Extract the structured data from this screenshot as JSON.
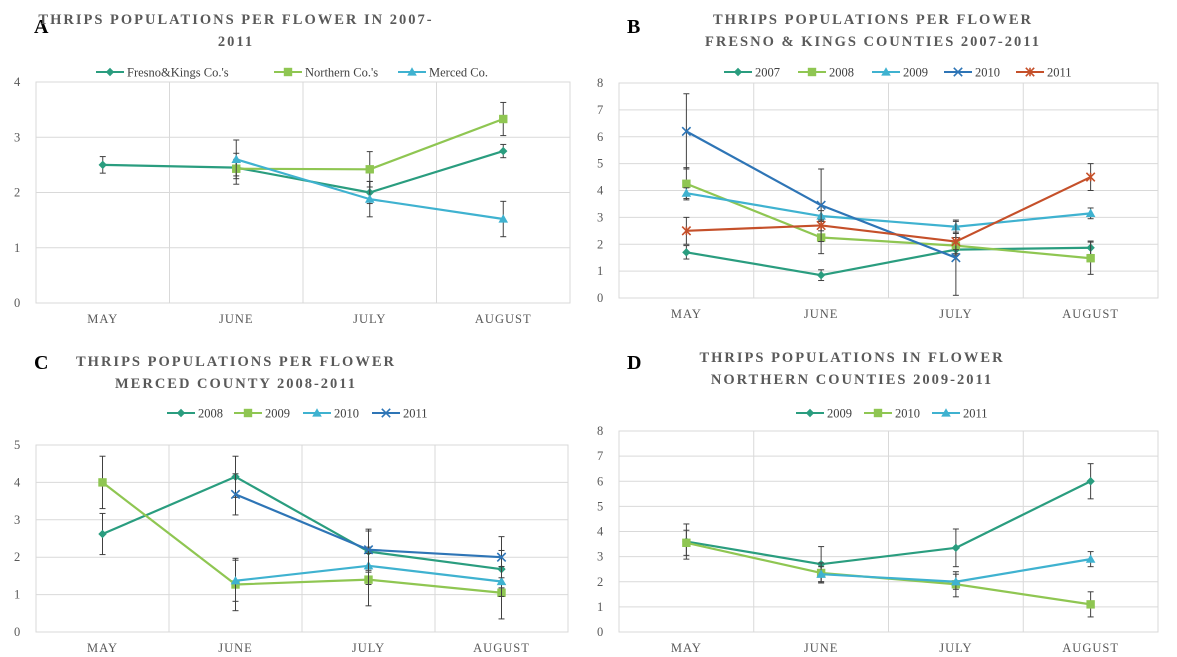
{
  "chart_data": [
    {
      "panel_letter": "A",
      "type": "line",
      "title": [
        "THRIPS POPULATIONS PER FLOWER IN 2007-",
        "2011"
      ],
      "categories": [
        "MAY",
        "JUNE",
        "JULY",
        "AUGUST"
      ],
      "ylim": [
        0,
        4
      ],
      "ytick_step": 1,
      "legend_position": "top",
      "grid": true,
      "series": [
        {
          "name": "Fresno&Kings Co.'s",
          "color": "#2a9d7f",
          "marker": "diamond",
          "values": [
            2.5,
            2.45,
            2.0,
            2.75
          ],
          "errors": [
            0.15,
            0.15,
            0.2,
            0.12
          ]
        },
        {
          "name": "Northern Co.'s",
          "color": "#8fc652",
          "marker": "square",
          "values": [
            null,
            2.43,
            2.42,
            3.33
          ],
          "errors": [
            null,
            0.28,
            0.32,
            0.3
          ]
        },
        {
          "name": "Merced Co.",
          "color": "#3fb2d0",
          "marker": "triangle",
          "values": [
            null,
            2.6,
            1.88,
            1.52
          ],
          "errors": [
            null,
            0.35,
            0.32,
            0.32
          ]
        }
      ]
    },
    {
      "panel_letter": "B",
      "type": "line",
      "title": [
        "THRIPS POPULATIONS PER FLOWER",
        "FRESNO & KINGS COUNTIES 2007-2011"
      ],
      "categories": [
        "MAY",
        "JUNE",
        "JULY",
        "AUGUST"
      ],
      "ylim": [
        0,
        8
      ],
      "ytick_step": 1,
      "legend_position": "top",
      "grid": true,
      "series": [
        {
          "name": "2007",
          "color": "#2a9d7f",
          "marker": "diamond",
          "values": [
            1.7,
            0.85,
            1.8,
            1.87
          ],
          "errors": [
            0.25,
            0.2,
            0.2,
            0.25
          ]
        },
        {
          "name": "2008",
          "color": "#8fc652",
          "marker": "square",
          "values": [
            4.25,
            2.25,
            1.95,
            1.48
          ],
          "errors": [
            0.6,
            0.6,
            0.3,
            0.6
          ]
        },
        {
          "name": "2009",
          "color": "#3fb2d0",
          "marker": "triangle",
          "values": [
            3.9,
            3.05,
            2.65,
            3.15
          ],
          "errors": [
            0.2,
            0.2,
            0.2,
            0.2
          ]
        },
        {
          "name": "2010",
          "color": "#2e75b6",
          "marker": "x",
          "values": [
            6.2,
            3.45,
            1.5,
            null
          ],
          "errors": [
            1.4,
            1.35,
            1.4,
            null
          ]
        },
        {
          "name": "2011",
          "color": "#c5502a",
          "marker": "star",
          "values": [
            2.5,
            2.7,
            2.1,
            4.5
          ],
          "errors": [
            0.5,
            0.2,
            0.3,
            0.5
          ]
        }
      ]
    },
    {
      "panel_letter": "C",
      "type": "line",
      "title": [
        "THRIPS POPULATIONS PER FLOWER",
        "MERCED COUNTY 2008-2011"
      ],
      "categories": [
        "MAY",
        "JUNE",
        "JULY",
        "AUGUST"
      ],
      "ylim": [
        0,
        5
      ],
      "ytick_step": 1,
      "legend_position": "top",
      "grid": true,
      "series": [
        {
          "name": "2008",
          "color": "#2a9d7f",
          "marker": "diamond",
          "values": [
            2.62,
            4.15,
            2.15,
            1.68
          ],
          "errors": [
            0.55,
            0.55,
            0.55,
            0.5
          ]
        },
        {
          "name": "2009",
          "color": "#8fc652",
          "marker": "square",
          "values": [
            4.0,
            1.27,
            1.4,
            1.05
          ],
          "errors": [
            0.7,
            0.7,
            0.7,
            0.7
          ]
        },
        {
          "name": "2010",
          "color": "#3fb2d0",
          "marker": "triangle",
          "values": [
            null,
            1.37,
            1.77,
            1.35
          ],
          "errors": [
            null,
            0.55,
            0.5,
            0.4
          ]
        },
        {
          "name": "2011",
          "color": "#2e75b6",
          "marker": "x",
          "values": [
            null,
            3.68,
            2.2,
            2.0
          ],
          "errors": [
            null,
            0.55,
            0.55,
            0.55
          ]
        }
      ]
    },
    {
      "panel_letter": "D",
      "type": "line",
      "title": [
        "THRIPS POPULATIONS IN FLOWER",
        "NORTHERN COUNTIES 2009-2011"
      ],
      "categories": [
        "MAY",
        "JUNE",
        "JULY",
        "AUGUST"
      ],
      "ylim": [
        0,
        8
      ],
      "ytick_step": 1,
      "legend_position": "top",
      "grid": true,
      "series": [
        {
          "name": "2009",
          "color": "#2a9d7f",
          "marker": "diamond",
          "values": [
            3.6,
            2.7,
            3.35,
            6.0
          ],
          "errors": [
            0.7,
            0.7,
            0.75,
            0.7
          ]
        },
        {
          "name": "2010",
          "color": "#8fc652",
          "marker": "square",
          "values": [
            3.55,
            2.35,
            1.9,
            1.1
          ],
          "errors": [
            0.5,
            0.4,
            0.5,
            0.5
          ]
        },
        {
          "name": "2011",
          "color": "#3fb2d0",
          "marker": "triangle",
          "values": [
            null,
            2.3,
            2.0,
            2.9
          ],
          "errors": [
            null,
            0.3,
            0.3,
            0.3
          ]
        }
      ]
    }
  ]
}
